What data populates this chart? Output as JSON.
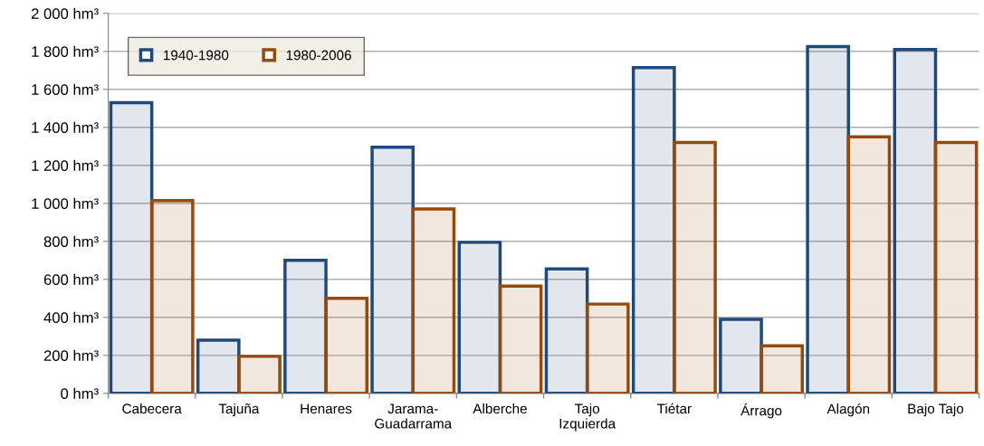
{
  "chart_data": {
    "type": "bar",
    "categories": [
      "Cabecera",
      "Tajuña",
      "Henares",
      "Jarama-\nGuadarrama",
      "Alberche",
      "Tajo\nIzquierda",
      "Tiétar",
      "Árrago",
      "Alagón",
      "Bajo Tajo"
    ],
    "series": [
      {
        "name": "1940-1980",
        "color": "#1f497d",
        "values": [
          1530,
          280,
          700,
          1295,
          795,
          655,
          1715,
          390,
          1825,
          1810
        ]
      },
      {
        "name": "1980-2006",
        "color": "#984807",
        "values": [
          1015,
          195,
          500,
          970,
          565,
          470,
          1320,
          250,
          1350,
          1320
        ]
      }
    ],
    "ylim": [
      0,
      2000
    ],
    "yticks": [
      {
        "value": 0,
        "label": "0 hm³"
      },
      {
        "value": 200,
        "label": "200 hm³"
      },
      {
        "value": 400,
        "label": "400 hm³"
      },
      {
        "value": 600,
        "label": "600 hm³"
      },
      {
        "value": 800,
        "label": "800 hm³"
      },
      {
        "value": 1000,
        "label": "1 000 hm³"
      },
      {
        "value": 1200,
        "label": "1 200 hm³"
      },
      {
        "value": 1400,
        "label": "1 400 hm³"
      },
      {
        "value": 1600,
        "label": "1 600 hm³"
      },
      {
        "value": 1800,
        "label": "1 800 hm³"
      },
      {
        "value": 2000,
        "label": "2 000 hm³"
      }
    ],
    "grid": "y",
    "legend": "top left"
  }
}
